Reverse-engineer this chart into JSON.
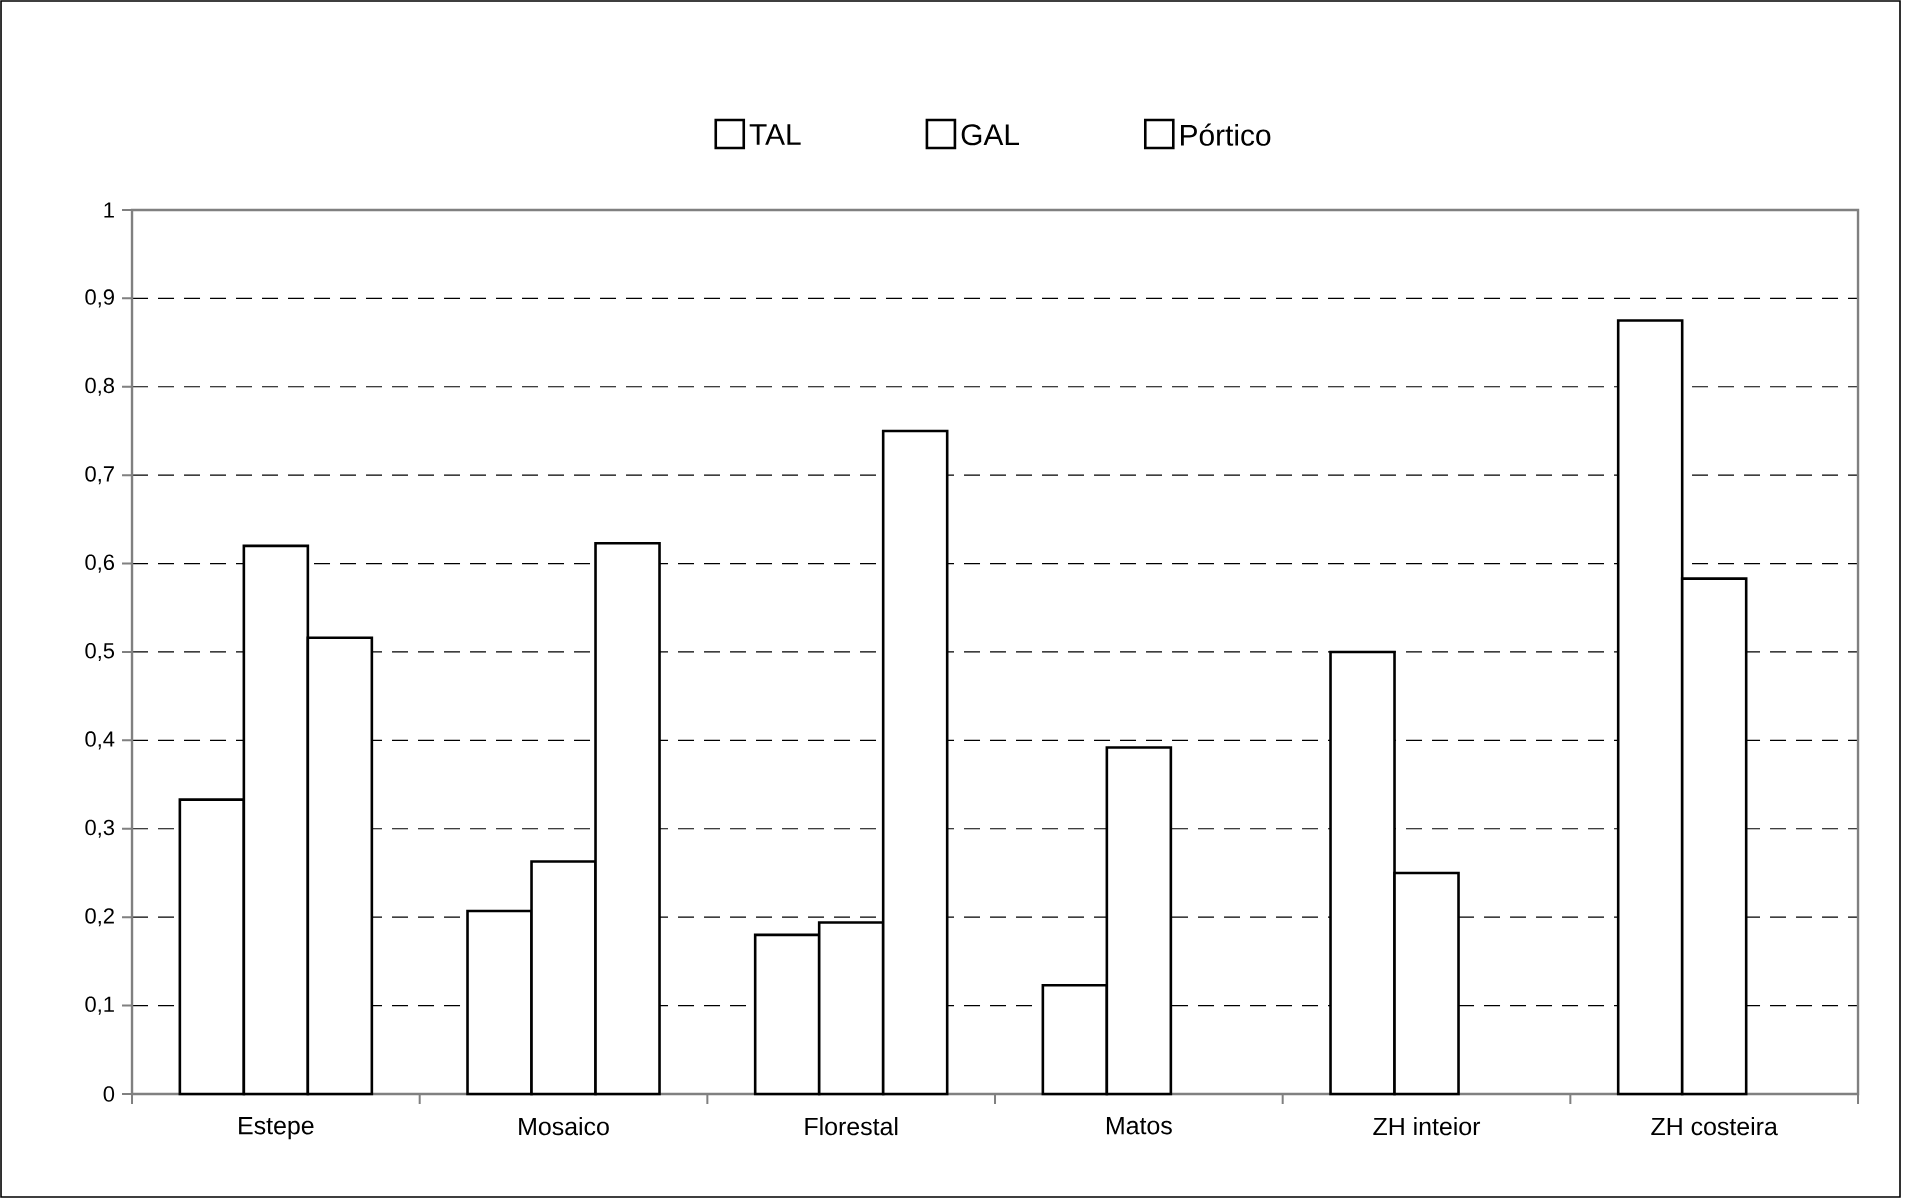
{
  "chart_data": {
    "type": "bar",
    "categories": [
      "Estepe",
      "Mosaico",
      "Florestal",
      "Matos",
      "ZH inteior",
      "ZH costeira"
    ],
    "series": [
      {
        "name": "TAL",
        "color": "#ffffff",
        "values": [
          0.333,
          0.207,
          0.18,
          0.123,
          0.5,
          0.875
        ]
      },
      {
        "name": "GAL",
        "color": "#ffffff",
        "values": [
          0.62,
          0.263,
          0.194,
          0.392,
          0.25,
          0.583
        ]
      },
      {
        "name": "Pórtico",
        "color": "#ffffff",
        "values": [
          0.516,
          0.623,
          0.75,
          null,
          null,
          null
        ]
      }
    ],
    "ylim": [
      0,
      1
    ],
    "yticks": [
      {
        "value": 0,
        "label": "0"
      },
      {
        "value": 0.1,
        "label": "0,1"
      },
      {
        "value": 0.2,
        "label": "0,2"
      },
      {
        "value": 0.3,
        "label": "0,3"
      },
      {
        "value": 0.4,
        "label": "0,4"
      },
      {
        "value": 0.5,
        "label": "0,5"
      },
      {
        "value": 0.6,
        "label": "0,6"
      },
      {
        "value": 0.7,
        "label": "0,7"
      },
      {
        "value": 0.8,
        "label": "0,8"
      },
      {
        "value": 0.9,
        "label": "0,9"
      },
      {
        "value": 1,
        "label": "1"
      }
    ],
    "grid": "y",
    "legend": "top"
  }
}
